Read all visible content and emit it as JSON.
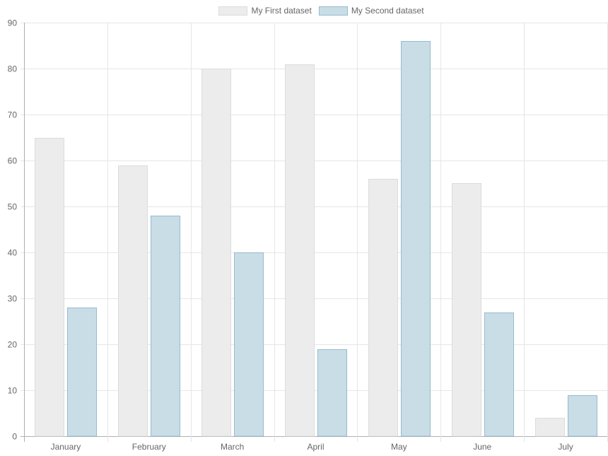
{
  "chart_data": {
    "type": "bar",
    "categories": [
      "January",
      "February",
      "March",
      "April",
      "May",
      "June",
      "July"
    ],
    "series": [
      {
        "name": "My First dataset",
        "values": [
          65,
          59,
          80,
          81,
          56,
          55,
          4
        ],
        "fill": "#ececec",
        "stroke": "#dcdcdc"
      },
      {
        "name": "My Second dataset",
        "values": [
          28,
          48,
          40,
          19,
          86,
          27,
          9
        ],
        "fill": "#c9dde6",
        "stroke": "#97bbcd"
      }
    ],
    "y_ticks": [
      "0",
      "10",
      "20",
      "30",
      "40",
      "50",
      "60",
      "70",
      "80",
      "90"
    ],
    "ylim": [
      0,
      90
    ],
    "title": "",
    "xlabel": "",
    "ylabel": "",
    "grid": true,
    "legend": "top-center"
  },
  "colors": {
    "grid": "#e6e6e6",
    "axis": "#b0b0b0",
    "text": "#666666"
  }
}
